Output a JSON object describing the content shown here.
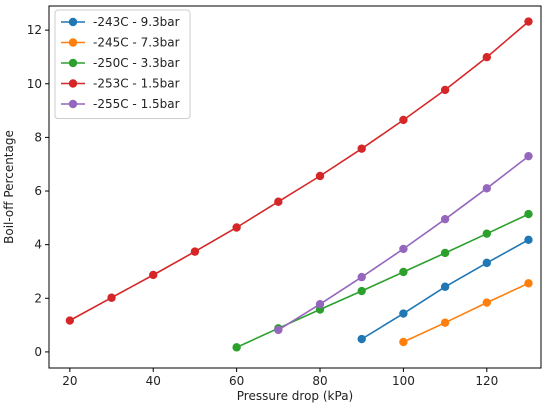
{
  "chart_data": {
    "type": "line",
    "title": "",
    "xlabel": "Pressure drop (kPa)",
    "ylabel": "Boil-off Percentage",
    "xlim": [
      15,
      133
    ],
    "ylim": [
      -0.6,
      12.9
    ],
    "xticks": [
      20,
      40,
      60,
      80,
      100,
      120
    ],
    "yticks": [
      0,
      2,
      4,
      6,
      8,
      10,
      12
    ],
    "grid": false,
    "legend_position": "top-left",
    "series": [
      {
        "name": "-243C - 9.3bar",
        "color": "#1f77b4",
        "x": [
          90,
          100,
          110,
          120,
          130
        ],
        "y": [
          0.48,
          1.43,
          2.43,
          3.32,
          4.18
        ]
      },
      {
        "name": "-245C - 7.3bar",
        "color": "#ff7f0e",
        "x": [
          100,
          110,
          120,
          130
        ],
        "y": [
          0.37,
          1.09,
          1.84,
          2.56
        ]
      },
      {
        "name": "-250C - 3.3bar",
        "color": "#2ca02c",
        "x": [
          60,
          70,
          80,
          90,
          100,
          110,
          120,
          130
        ],
        "y": [
          0.17,
          0.88,
          1.58,
          2.27,
          2.98,
          3.69,
          4.41,
          5.14
        ]
      },
      {
        "name": "-253C - 1.5bar",
        "color": "#d62728",
        "x": [
          20,
          30,
          40,
          50,
          60,
          70,
          80,
          90,
          100,
          110,
          120,
          130
        ],
        "y": [
          1.17,
          2.02,
          2.87,
          3.74,
          4.64,
          5.6,
          6.56,
          7.58,
          8.65,
          9.77,
          10.99,
          12.32
        ]
      },
      {
        "name": "-255C - 1.5bar",
        "color": "#9467bd",
        "x": [
          70,
          80,
          90,
          100,
          110,
          120,
          130
        ],
        "y": [
          0.82,
          1.78,
          2.79,
          3.84,
          4.95,
          6.1,
          7.3
        ]
      }
    ]
  }
}
